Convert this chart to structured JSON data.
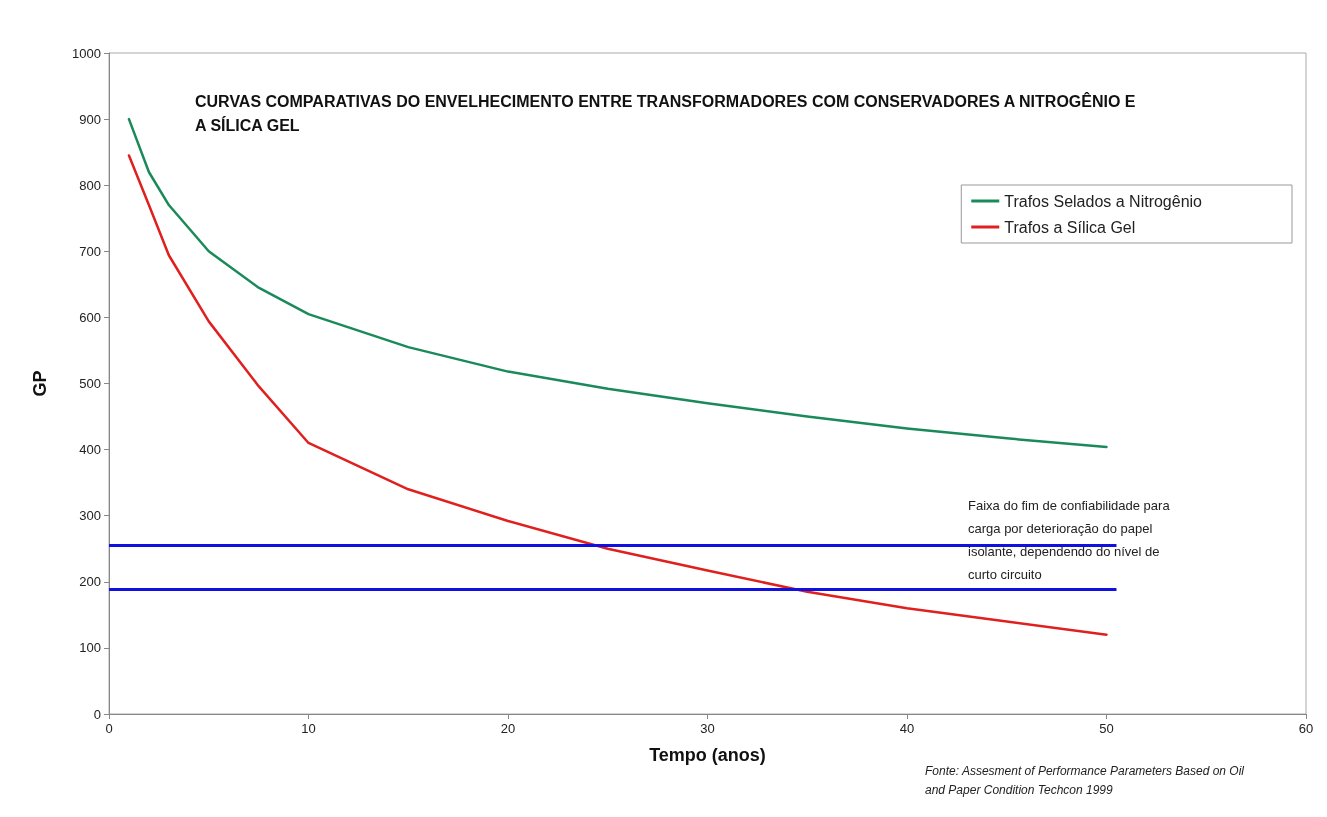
{
  "chart_data": {
    "type": "line",
    "title": "CURVAS COMPARATIVAS DO ENVELHECIMENTO ENTRE TRANSFORMADORES COM CONSERVADORES A NITROGÊNIO E A SÍLICA GEL",
    "xlabel": "Tempo (anos)",
    "ylabel": "GP",
    "x": [
      1,
      2,
      3,
      5,
      7.5,
      10,
      15,
      20,
      25,
      30,
      35,
      40,
      45,
      50
    ],
    "series": [
      {
        "name": "Trafos Selados a Nitrogênio",
        "color": "#1a8a5a",
        "values": [
          900,
          820,
          770,
          700,
          645,
          605,
          555,
          518,
          492,
          470,
          450,
          432,
          417,
          404
        ]
      },
      {
        "name": "Trafos a Sílica Gel",
        "color": "#e0201e",
        "values": [
          845,
          770,
          694,
          594,
          496,
          410,
          340,
          292,
          250,
          217,
          185,
          160,
          140,
          120
        ]
      }
    ],
    "xlim": [
      0,
      60
    ],
    "xticks": [
      0,
      10,
      20,
      30,
      40,
      50,
      60
    ],
    "ylim": [
      0,
      1000
    ],
    "yticks": [
      0,
      100,
      200,
      300,
      400,
      500,
      600,
      700,
      800,
      900,
      1000
    ],
    "ref_lines": [
      {
        "axis": "y",
        "value": 256,
        "color": "#1010e0"
      },
      {
        "axis": "y",
        "value": 188,
        "color": "#1010e0"
      }
    ],
    "annotations": [
      "Faixa do fim de confiabilidade para carga por deterioração do papel isolante, dependendo do nível de curto circuito",
      "Fonte: Assesment of Performance Parameters Based on Oil and Paper Condition Techcon 1999"
    ],
    "grid": false,
    "legend": "top right",
    "marker": "none",
    "line_style": "solid"
  }
}
